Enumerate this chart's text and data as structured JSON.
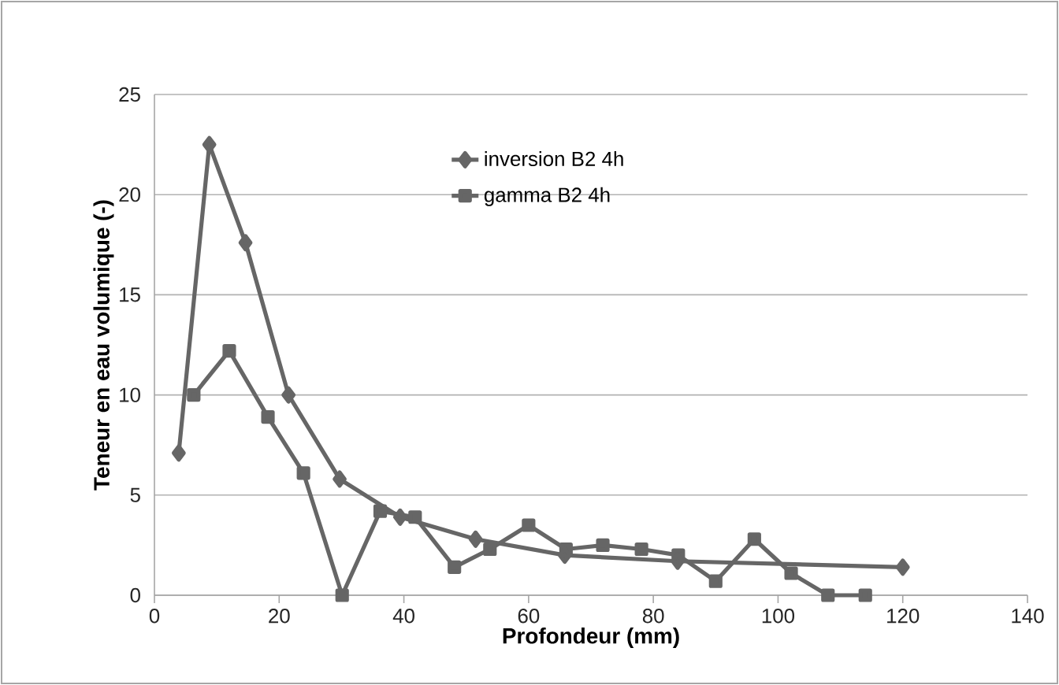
{
  "chart_data": {
    "type": "line",
    "xlabel": "Profondeur (mm)",
    "ylabel": "Teneur en eau volumique (-)",
    "xlim": [
      0,
      140
    ],
    "xticks": [
      0,
      20,
      40,
      60,
      80,
      100,
      120,
      140
    ],
    "ylim": [
      0,
      25
    ],
    "yticks": [
      0,
      5,
      10,
      15,
      20,
      25
    ],
    "grid": "y",
    "legend": "top",
    "line_style": "solid",
    "series": [
      {
        "name": "inversion B2 4h",
        "color": "#666666",
        "marker": "diamond",
        "x": [
          3.9,
          8.8,
          14.6,
          21.5,
          29.7,
          39.4,
          51.5,
          65.8,
          83.9,
          120
        ],
        "values": [
          7.1,
          22.5,
          17.6,
          10.0,
          5.8,
          3.9,
          2.8,
          2.0,
          1.7,
          1.4
        ]
      },
      {
        "name": "gamma B2 4h",
        "color": "#666666",
        "marker": "square",
        "x": [
          6.3,
          12.0,
          18.2,
          23.9,
          30.1,
          36.2,
          41.8,
          48.1,
          53.8,
          60,
          66,
          71.9,
          78.1,
          84,
          90,
          96.2,
          102.1,
          108,
          114
        ],
        "values": [
          10.0,
          12.2,
          8.9,
          6.1,
          0,
          4.2,
          3.9,
          1.4,
          2.3,
          3.5,
          2.3,
          2.5,
          2.3,
          2.0,
          0.7,
          2.8,
          1.1,
          0,
          0
        ]
      }
    ]
  }
}
